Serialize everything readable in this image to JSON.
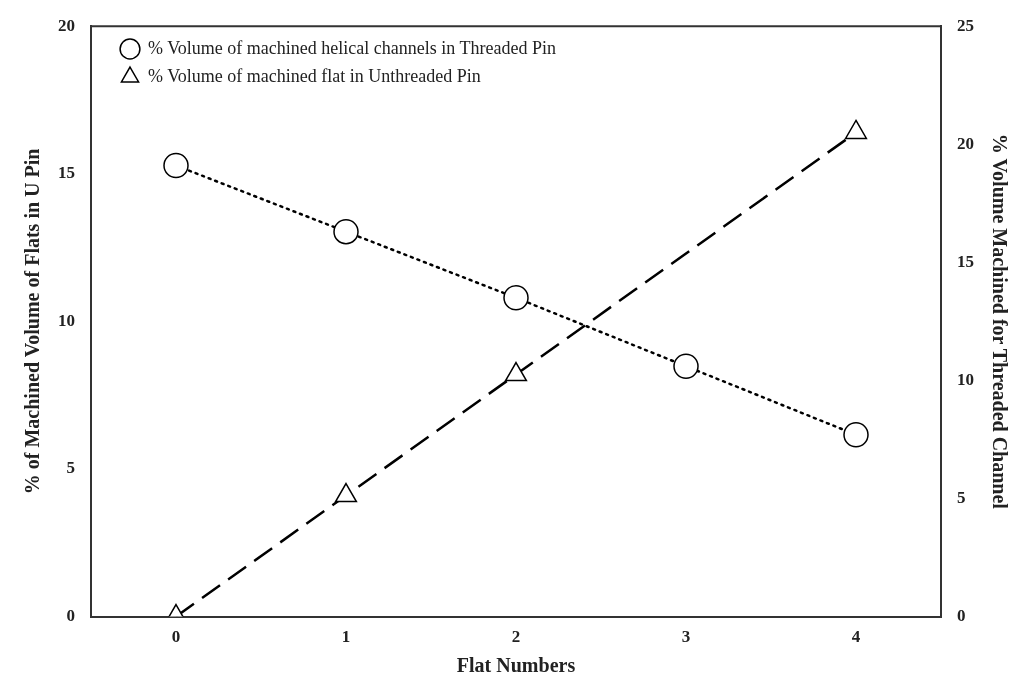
{
  "chart_data": {
    "type": "line",
    "xlabel": "Flat Numbers",
    "ylabel": "% of Machined Volume of Flats in U Pin",
    "y2label": "% Volume Machined for Threaded Channel",
    "x": [
      0,
      1,
      2,
      3,
      4
    ],
    "xlim": [
      -0.5,
      4.5
    ],
    "xticks": [
      0,
      1,
      2,
      3,
      4
    ],
    "ylim": [
      0,
      20
    ],
    "yticks": [
      0,
      5,
      10,
      15,
      20
    ],
    "y2lim": [
      0,
      25
    ],
    "y2ticks": [
      0,
      5,
      10,
      15,
      20,
      25
    ],
    "legend": "top left",
    "series": [
      {
        "name": "% Volume of machined helical channels in Threaded Pin",
        "color": "#000000",
        "values": [
          19.1,
          16.3,
          13.5,
          10.6,
          7.7
        ],
        "axis": "y2",
        "marker": "circle",
        "line_style": "dotted"
      },
      {
        "name": "% Volume of machined flat in Unthreaded Pin",
        "color": "#000000",
        "values": [
          0,
          4.1,
          8.2,
          null,
          16.4
        ],
        "axis": "y",
        "marker": "triangle",
        "line_style": "dashed"
      }
    ]
  }
}
